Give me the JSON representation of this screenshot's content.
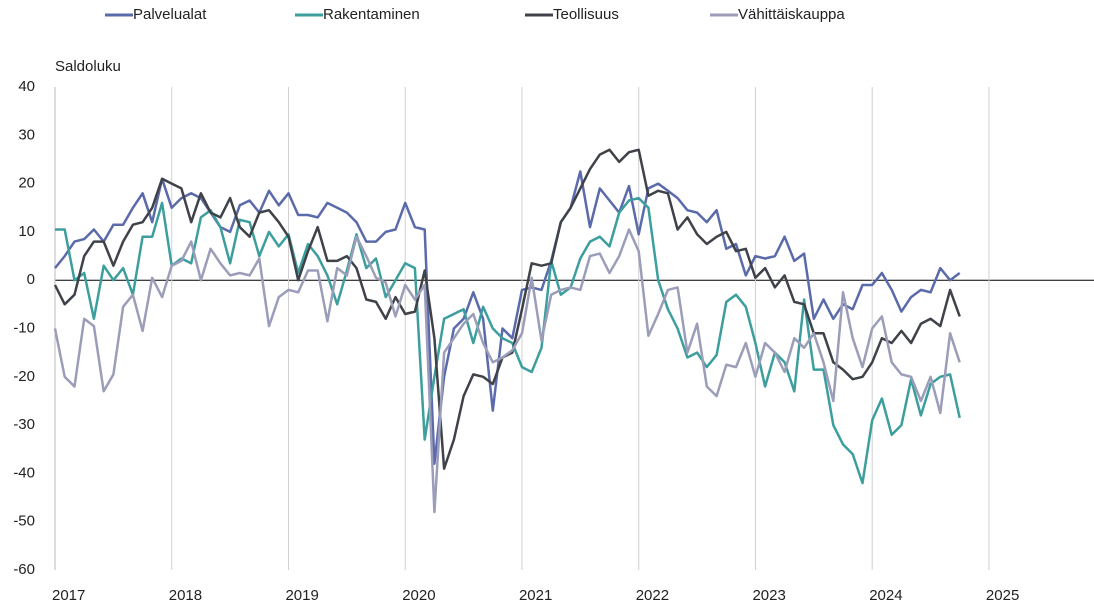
{
  "chart_data": {
    "type": "line",
    "y_label": "Saldoluku",
    "legend": "top",
    "grid": true,
    "xlim": [
      2017,
      2025.9
    ],
    "xticks": [
      2017,
      2018,
      2019,
      2020,
      2021,
      2022,
      2023,
      2024,
      2025
    ],
    "ylim": [
      -60,
      40
    ],
    "yticks": [
      -60,
      -50,
      -40,
      -30,
      -20,
      -10,
      0,
      10,
      20,
      30,
      40
    ],
    "x": [
      2017,
      2017.083,
      2017.167,
      2017.25,
      2017.333,
      2017.417,
      2017.5,
      2017.583,
      2017.667,
      2017.75,
      2017.833,
      2017.917,
      2018,
      2018.083,
      2018.167,
      2018.25,
      2018.333,
      2018.417,
      2018.5,
      2018.583,
      2018.667,
      2018.75,
      2018.833,
      2018.917,
      2019,
      2019.083,
      2019.167,
      2019.25,
      2019.333,
      2019.417,
      2019.5,
      2019.583,
      2019.667,
      2019.75,
      2019.833,
      2019.917,
      2020,
      2020.083,
      2020.167,
      2020.25,
      2020.333,
      2020.417,
      2020.5,
      2020.583,
      2020.667,
      2020.75,
      2020.833,
      2020.917,
      2021,
      2021.083,
      2021.167,
      2021.25,
      2021.333,
      2021.417,
      2021.5,
      2021.583,
      2021.667,
      2021.75,
      2021.833,
      2021.917,
      2022,
      2022.083,
      2022.167,
      2022.25,
      2022.333,
      2022.417,
      2022.5,
      2022.583,
      2022.667,
      2022.75,
      2022.833,
      2022.917,
      2023,
      2023.083,
      2023.167,
      2023.25,
      2023.333,
      2023.417,
      2023.5,
      2023.583,
      2023.667,
      2023.75,
      2023.833,
      2023.917,
      2024,
      2024.083,
      2024.167,
      2024.25,
      2024.333,
      2024.417,
      2024.5,
      2024.583,
      2024.667,
      2024.75
    ],
    "series": [
      {
        "name": "Palvelualat",
        "color": "#5b6aaa",
        "values": [
          2.5,
          5,
          8,
          8.5,
          10.5,
          8,
          11.5,
          11.5,
          15,
          18,
          12,
          21,
          15,
          17,
          18,
          17,
          14,
          11,
          10,
          15.5,
          16.5,
          14,
          18.5,
          15.5,
          18,
          13.5,
          13.5,
          13,
          16,
          15,
          14,
          12,
          8,
          8,
          10,
          10.5,
          16,
          11,
          10.5,
          -38,
          -20,
          -10,
          -8,
          -2.5,
          -8,
          -27,
          -10,
          -12,
          -2,
          -1.5,
          -2,
          4,
          12,
          15,
          22.5,
          11,
          19,
          16.5,
          14,
          19.5,
          9.5,
          19,
          20,
          18.5,
          17,
          14.5,
          14,
          12,
          14.5,
          6.5,
          7.5,
          1,
          5,
          4.5,
          5,
          9,
          4,
          5.5,
          -8,
          -4,
          -8,
          -5,
          -6,
          -1,
          -1,
          1.5,
          -2,
          -6.5,
          -3.5,
          -2,
          -2.5,
          2.5,
          0,
          1.5
        ]
      },
      {
        "name": "Rakentaminen",
        "color": "#3d9e9e",
        "values": [
          10.5,
          10.5,
          0,
          1.5,
          -8,
          3,
          0,
          2.5,
          -3,
          9,
          9,
          16,
          3,
          4.5,
          3.5,
          13,
          14.5,
          11,
          3.5,
          12.5,
          12,
          5,
          10,
          7,
          9.5,
          1.5,
          7.5,
          5,
          1,
          -5,
          2,
          9.5,
          2.5,
          4.5,
          -3.5,
          0,
          3.5,
          2.5,
          -33,
          -20,
          -8,
          -7,
          -6,
          -13,
          -5.5,
          -10,
          -12,
          -13,
          -18,
          -19,
          -14,
          4,
          -3,
          -1.5,
          4.5,
          8,
          9,
          7,
          14,
          16.5,
          17,
          15,
          0,
          -6,
          -10,
          -16,
          -15,
          -18,
          -15.5,
          -4.5,
          -3,
          -5.5,
          -13,
          -22,
          -15,
          -17,
          -23,
          -4,
          -18.5,
          -18.5,
          -30,
          -34,
          -36,
          -42,
          -29,
          -24.5,
          -32,
          -30,
          -20.5,
          -28,
          -21.5,
          -20,
          -19.5,
          -28.5
        ]
      },
      {
        "name": "Teollisuus",
        "color": "#3f4349",
        "values": [
          -1,
          -5,
          -3,
          5,
          8,
          8,
          3,
          8,
          11.5,
          12,
          15,
          21,
          20,
          19,
          12,
          18,
          14,
          13,
          17,
          11,
          9,
          14,
          14.5,
          12,
          9,
          0,
          6,
          11,
          4,
          4,
          5,
          2.5,
          -4,
          -4.5,
          -8,
          -3.5,
          -7,
          -6.5,
          2,
          -12,
          -39,
          -33,
          -24,
          -19.5,
          -20,
          -21.5,
          -16,
          -15,
          -6,
          3.5,
          3,
          3.5,
          12,
          15,
          19,
          23,
          26,
          27,
          24.5,
          26.5,
          27,
          17.5,
          18.5,
          18,
          10.5,
          13,
          9.5,
          7.5,
          9,
          10,
          6,
          6.5,
          0.5,
          2.5,
          -1.5,
          1,
          -4.5,
          -5,
          -11,
          -11,
          -17,
          -18.5,
          -20.5,
          -20,
          -17,
          -12,
          -13,
          -10.5,
          -13,
          -9,
          -8,
          -9.5,
          -2,
          -7.5
        ]
      },
      {
        "name": "Vähittäiskauppa",
        "color": "#9b9db9",
        "values": [
          -10,
          -20,
          -22,
          -8,
          -9.5,
          -23,
          -19.5,
          -5.5,
          -3,
          -10.5,
          0.5,
          -3.5,
          3,
          4,
          8,
          0,
          6.5,
          3.5,
          1,
          1.5,
          1,
          4.5,
          -9.5,
          -3.5,
          -2,
          -2.5,
          2,
          2,
          -8.5,
          2.5,
          1,
          9,
          5,
          0.5,
          -0.5,
          -7.5,
          -1,
          -4,
          -1,
          -48,
          -15,
          -12,
          -9,
          -7,
          -13,
          -17,
          -16,
          -14.5,
          -11,
          0.5,
          -12.5,
          -3,
          -2,
          -1.5,
          -2,
          5,
          5.5,
          1.5,
          5,
          10.5,
          6,
          -11.5,
          -7,
          -2,
          -1.5,
          -15,
          -9,
          -22,
          -24,
          -17.5,
          -18,
          -13,
          -20,
          -13,
          -15,
          -19,
          -12,
          -14,
          -11,
          -17,
          -25,
          -2.5,
          -12,
          -18,
          -10,
          -7.5,
          -17,
          -19.5,
          -20,
          -25,
          -20,
          -27.5,
          -11,
          -17
        ]
      }
    ]
  }
}
